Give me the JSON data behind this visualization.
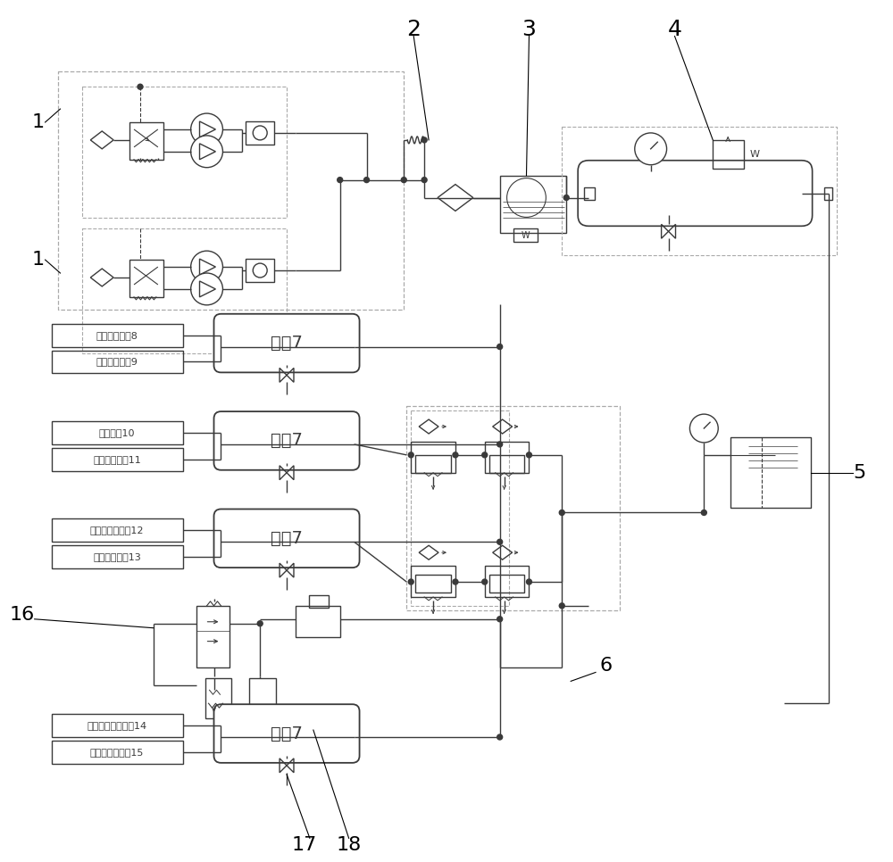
{
  "bg_color": "#ffffff",
  "line_color": "#3a3a3a",
  "dashed_color": "#aaaaaa",
  "system_labels": {
    "s8": "油门控制系瀗8",
    "s9": "制动控制系瀗9",
    "s10": "制动系统10",
    "s11": "空气悬挂系统11",
    "s12": "气控百叶窗系统12",
    "s13": "气控油门系统13",
    "s14": "气控前桥驱动系统14",
    "s15": "气控缓速器系统15",
    "qp7": "气瓶7"
  },
  "lw": 1.0,
  "fig_width": 10.0,
  "fig_height": 9.66
}
